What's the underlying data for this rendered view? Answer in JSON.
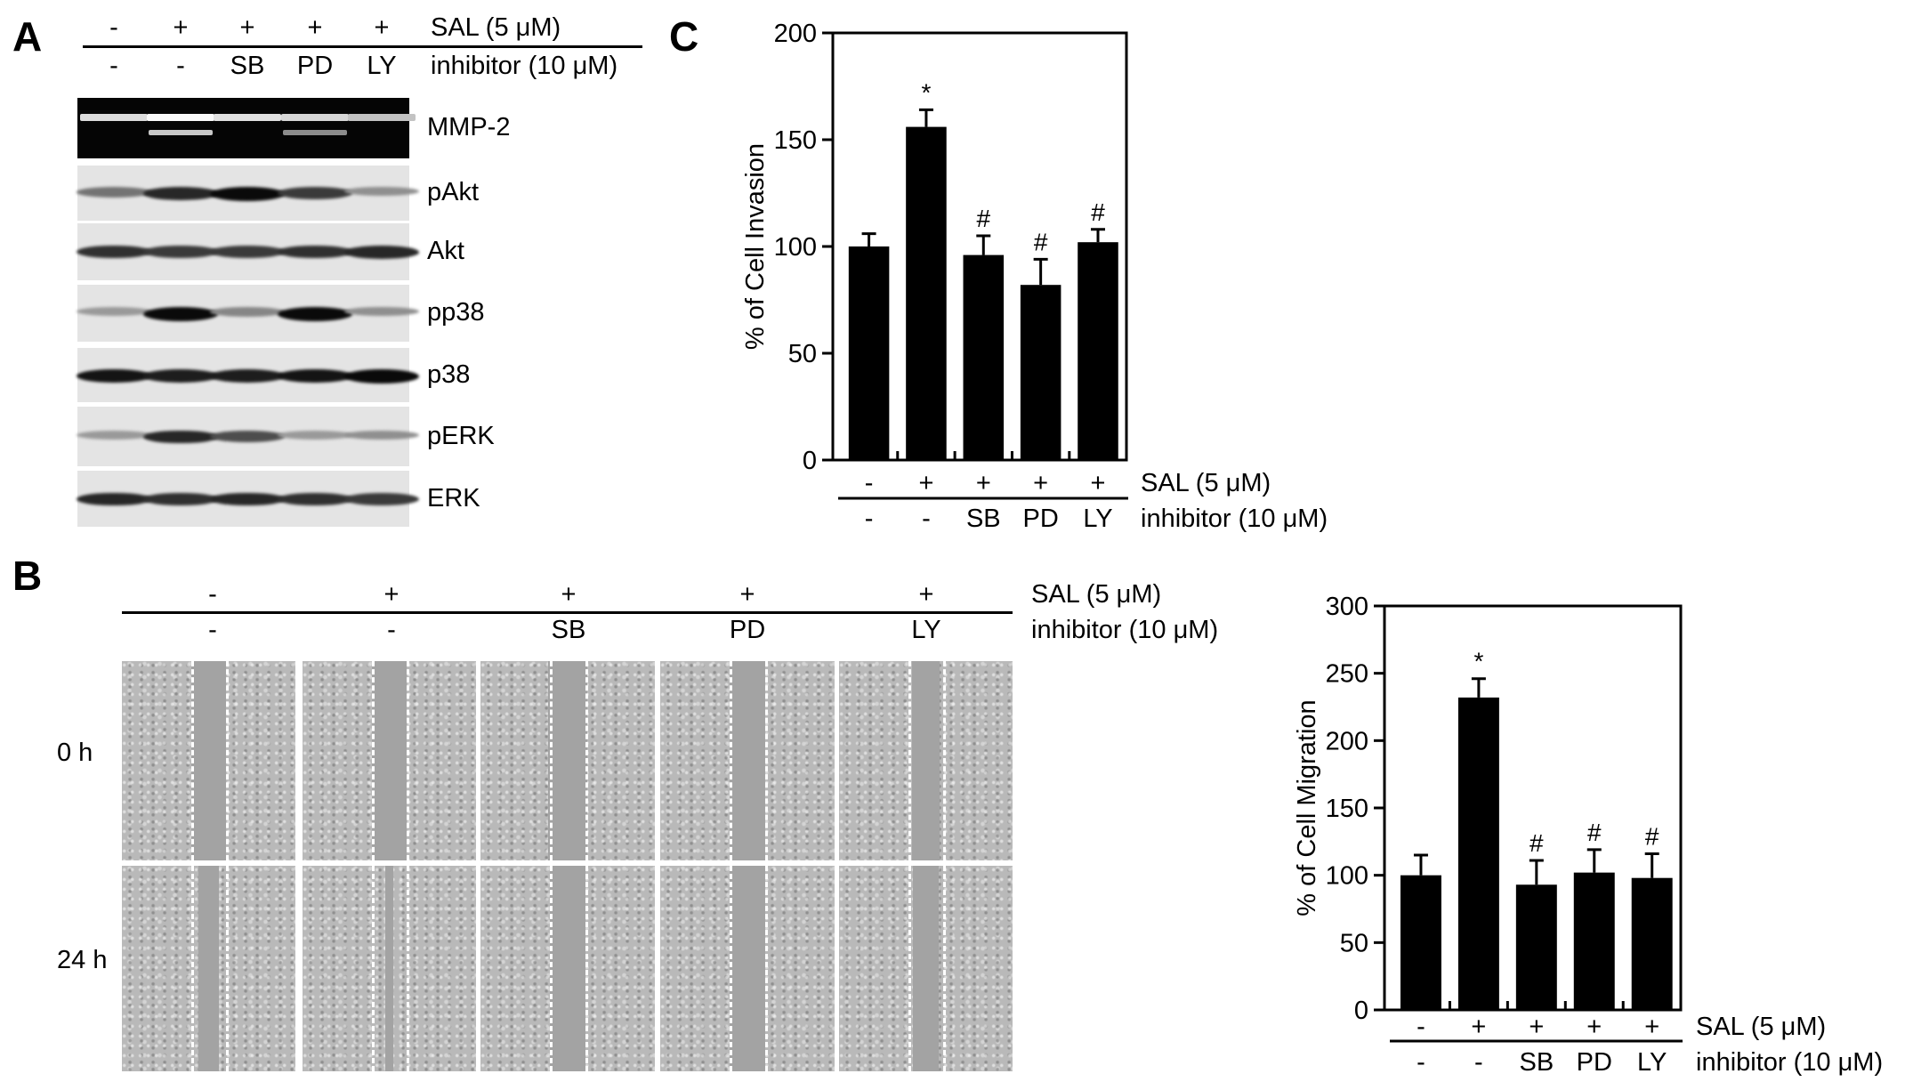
{
  "panels": {
    "a": "A",
    "b": "B",
    "c": "C"
  },
  "conditions": {
    "sal_label": "SAL (5 μM)",
    "inhibitor_label": "inhibitor (10 μM)",
    "sal": [
      "-",
      "+",
      "+",
      "+",
      "+"
    ],
    "inhibitor": [
      "-",
      "-",
      "SB",
      "PD",
      "LY"
    ]
  },
  "blot": {
    "rows": [
      {
        "label": "MMP-2",
        "type": "zymogram",
        "intensities": [
          0.7,
          1.0,
          0.75,
          0.65,
          0.45
        ]
      },
      {
        "label": "pAkt",
        "type": "western",
        "intensities": [
          0.45,
          0.85,
          1.0,
          0.75,
          0.3
        ]
      },
      {
        "label": "Akt",
        "type": "western",
        "intensities": [
          0.8,
          0.75,
          0.75,
          0.8,
          0.85
        ]
      },
      {
        "label": "pp38",
        "type": "western",
        "intensities": [
          0.25,
          1.0,
          0.35,
          1.0,
          0.3
        ]
      },
      {
        "label": "p38",
        "type": "western",
        "intensities": [
          0.95,
          0.9,
          0.9,
          0.95,
          1.0
        ]
      },
      {
        "label": "pERK",
        "type": "western",
        "intensities": [
          0.25,
          0.85,
          0.65,
          0.25,
          0.3
        ]
      },
      {
        "label": "ERK",
        "type": "western",
        "intensities": [
          0.85,
          0.8,
          0.85,
          0.8,
          0.75
        ]
      }
    ]
  },
  "wound": {
    "timepoints": [
      "0 h",
      "24 h"
    ]
  },
  "chart_data": [
    {
      "type": "bar",
      "panel": "C",
      "title": "",
      "xlabel": "",
      "ylabel": "% of Cell Invasion",
      "categories": [
        "- / -",
        "+ / -",
        "+ / SB",
        "+ / PD",
        "+ / LY"
      ],
      "values": [
        100,
        156,
        96,
        82,
        102
      ],
      "errors": [
        6,
        8,
        9,
        12,
        6
      ],
      "annotations": [
        "",
        "*",
        "#",
        "#",
        "#"
      ],
      "ylim": [
        0,
        200
      ],
      "yticks": [
        "0",
        "50",
        "100",
        "150",
        "200"
      ],
      "grid": false
    },
    {
      "type": "bar",
      "panel": "B",
      "title": "",
      "xlabel": "",
      "ylabel": "% of Cell Migration",
      "categories": [
        "- / -",
        "+ / -",
        "+ / SB",
        "+ / PD",
        "+ / LY"
      ],
      "values": [
        100,
        232,
        93,
        102,
        98
      ],
      "errors": [
        15,
        14,
        18,
        17,
        18
      ],
      "annotations": [
        "",
        "*",
        "#",
        "#",
        "#"
      ],
      "ylim": [
        0,
        300
      ],
      "yticks": [
        "0",
        "50",
        "100",
        "150",
        "200",
        "250",
        "300"
      ],
      "grid": false
    }
  ]
}
